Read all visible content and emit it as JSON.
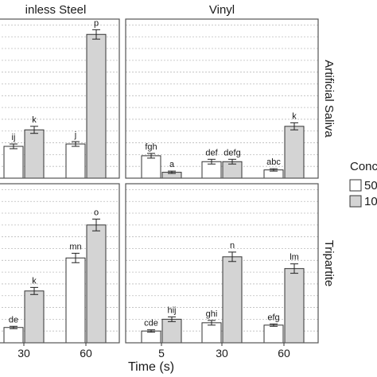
{
  "chart_data": {
    "type": "bar",
    "xlabel": "Time (s)",
    "ylabel": "",
    "legend": {
      "title": "Conc",
      "entries": [
        "50",
        "10"
      ]
    },
    "columns": [
      "inless Steel",
      "Vinyl"
    ],
    "rows": [
      "Artificial Saliva",
      "Tripartite"
    ],
    "grid": true,
    "panels": [
      {
        "column": "inless Steel",
        "row": "Artificial Saliva",
        "categories": [
          "30",
          "60"
        ],
        "bars": [
          {
            "x": "30",
            "value": 0.27,
            "err": 0.02,
            "label": "ij"
          },
          {
            "x": "30",
            "value": 0.41,
            "err": 0.03,
            "label": "k"
          },
          {
            "x": "60",
            "value": 0.29,
            "err": 0.02,
            "label": "j"
          },
          {
            "x": "60",
            "value": 1.22,
            "err": 0.04,
            "label": "p"
          }
        ]
      },
      {
        "column": "Vinyl",
        "row": "Artificial Saliva",
        "categories": [
          "5",
          "30",
          "60"
        ],
        "bars": [
          {
            "x": "5",
            "value": 0.19,
            "err": 0.02,
            "label": "fgh"
          },
          {
            "x": "5",
            "value": 0.05,
            "err": 0.01,
            "label": "a"
          },
          {
            "x": "30",
            "value": 0.14,
            "err": 0.02,
            "label": "def"
          },
          {
            "x": "30",
            "value": 0.14,
            "err": 0.02,
            "label": "defg"
          },
          {
            "x": "60",
            "value": 0.07,
            "err": 0.01,
            "label": "abc"
          },
          {
            "x": "60",
            "value": 0.44,
            "err": 0.03,
            "label": "k"
          }
        ]
      },
      {
        "column": "inless Steel",
        "row": "Tripartite",
        "categories": [
          "30",
          "60"
        ],
        "bars": [
          {
            "x": "30",
            "value": 0.13,
            "err": 0.01,
            "label": "de"
          },
          {
            "x": "30",
            "value": 0.44,
            "err": 0.03,
            "label": "k"
          },
          {
            "x": "60",
            "value": 0.72,
            "err": 0.04,
            "label": "mn"
          },
          {
            "x": "60",
            "value": 1.0,
            "err": 0.05,
            "label": "o"
          }
        ]
      },
      {
        "column": "Vinyl",
        "row": "Tripartite",
        "categories": [
          "5",
          "30",
          "60"
        ],
        "bars": [
          {
            "x": "5",
            "value": 0.1,
            "err": 0.01,
            "label": "cde"
          },
          {
            "x": "5",
            "value": 0.2,
            "err": 0.02,
            "label": "hij"
          },
          {
            "x": "30",
            "value": 0.17,
            "err": 0.02,
            "label": "ghi"
          },
          {
            "x": "30",
            "value": 0.73,
            "err": 0.04,
            "label": "n"
          },
          {
            "x": "60",
            "value": 0.15,
            "err": 0.01,
            "label": "efg"
          },
          {
            "x": "60",
            "value": 0.63,
            "err": 0.04,
            "label": "lm"
          }
        ]
      }
    ],
    "ylim": [
      0,
      1.35
    ],
    "colors": {
      "fill_low": "#ffffff",
      "fill_high": "#d4d4d4",
      "bar_edge": "#333333",
      "panel_edge": "#555555",
      "strip_bg": "#ffffff",
      "grid": "#bcbcbc"
    }
  }
}
